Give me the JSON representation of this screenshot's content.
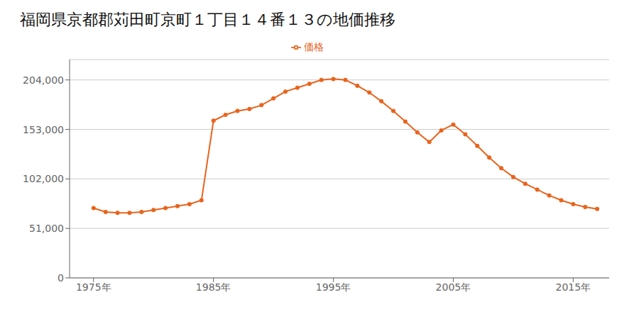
{
  "chart_data": {
    "type": "line",
    "title": "福岡県京都郡苅田町京町１丁目１４番１３の地価推移",
    "x": [
      1975,
      1976,
      1977,
      1978,
      1979,
      1980,
      1981,
      1982,
      1983,
      1984,
      1985,
      1986,
      1987,
      1988,
      1989,
      1990,
      1991,
      1992,
      1993,
      1994,
      1995,
      1996,
      1997,
      1998,
      1999,
      2000,
      2001,
      2002,
      2003,
      2004,
      2005,
      2006,
      2007,
      2008,
      2009,
      2010,
      2011,
      2012,
      2013,
      2014,
      2015,
      2016,
      2017
    ],
    "series": [
      {
        "name": "価格",
        "color": "#e8641e",
        "values": [
          72000,
          68000,
          67000,
          67000,
          68000,
          70000,
          72000,
          74000,
          76000,
          80000,
          162000,
          168000,
          172000,
          174000,
          178000,
          185000,
          192000,
          196000,
          200000,
          204000,
          205000,
          204000,
          198000,
          191000,
          182000,
          172000,
          161000,
          150000,
          140000,
          152000,
          158000,
          148000,
          136000,
          124000,
          113000,
          104000,
          97000,
          91000,
          85000,
          80000,
          76000,
          73000,
          71000
        ]
      }
    ],
    "xlim": [
      1973,
      2018
    ],
    "xticks": [
      {
        "value": 1975,
        "label": "1975年"
      },
      {
        "value": 1985,
        "label": "1985年"
      },
      {
        "value": 1995,
        "label": "1995年"
      },
      {
        "value": 2005,
        "label": "2005年"
      },
      {
        "value": 2015,
        "label": "2015年"
      }
    ],
    "ylim": [
      0,
      225000
    ],
    "yticks": [
      0,
      {
        "value": 51000,
        "label": "51,000"
      },
      {
        "value": 102000,
        "label": "102,000"
      },
      {
        "value": 153000,
        "label": "153,000"
      },
      {
        "value": 204000,
        "label": "204,000"
      }
    ],
    "grid": true,
    "legend": "top",
    "marker": "circle"
  }
}
